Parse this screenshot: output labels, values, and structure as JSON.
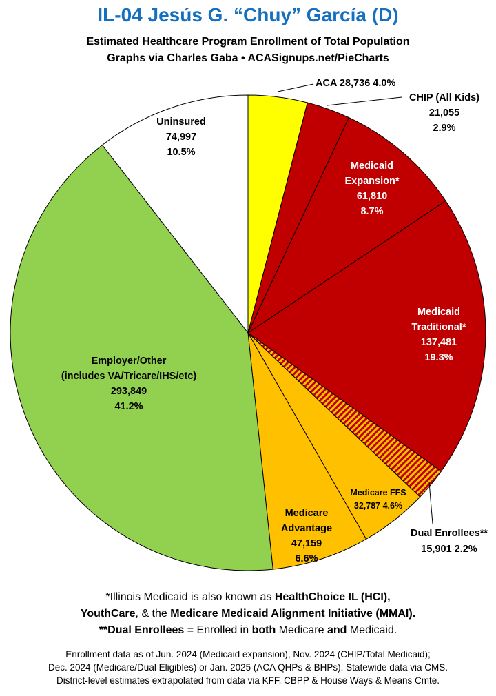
{
  "title": "IL-04 Jesús G. “Chuy” García (D)",
  "subtitle_line1": "Estimated Healthcare Program Enrollment of Total Population",
  "subtitle_line2": "Graphs via Charles Gaba   •   ACASignups.net/PieCharts",
  "colors": {
    "title": "#1670c0",
    "aca": "#ffff00",
    "medicaid": "#c00000",
    "medicare": "#ffc000",
    "employer": "#92d050",
    "uninsured": "#ffffff",
    "dual_stripe_a": "#c00000",
    "dual_stripe_b": "#ffc000"
  },
  "chart_data": {
    "type": "pie",
    "title": "IL-04 Jesús G. “Chuy” García (D)",
    "slices": [
      {
        "label": "ACA",
        "value": 28736,
        "value_text": "28,736",
        "pct": "4.0%",
        "color": "#ffff00"
      },
      {
        "label": "CHIP (All Kids)",
        "value": 21055,
        "value_text": "21,055",
        "pct": "2.9%",
        "color": "#c00000"
      },
      {
        "label": "Medicaid Expansion*",
        "value": 61810,
        "value_text": "61,810",
        "pct": "8.7%",
        "color": "#c00000"
      },
      {
        "label": "Medicaid Traditional*",
        "value": 137481,
        "value_text": "137,481",
        "pct": "19.3%",
        "color": "#c00000"
      },
      {
        "label": "Dual Enrollees**",
        "value": 15901,
        "value_text": "15,901",
        "pct": "2.2%",
        "color": "striped"
      },
      {
        "label": "Medicare FFS",
        "value": 32787,
        "value_text": "32,787",
        "pct": "4.6%",
        "color": "#ffc000"
      },
      {
        "label": "Medicare Advantage",
        "value": 47159,
        "value_text": "47,159",
        "pct": "6.6%",
        "color": "#ffc000"
      },
      {
        "label": "Employer/Other (includes VA/Tricare/IHS/etc)",
        "value": 293849,
        "value_text": "293,849",
        "pct": "41.2%",
        "color": "#92d050"
      },
      {
        "label": "Uninsured",
        "value": 74997,
        "value_text": "74,997",
        "pct": "10.5%",
        "color": "#ffffff"
      }
    ]
  },
  "labels": {
    "aca": "ACA 28,736 4.0%",
    "chip": [
      "CHIP (All Kids)",
      "21,055",
      "2.9%"
    ],
    "expansion": [
      "Medicaid",
      "Expansion*",
      "61,810",
      "8.7%"
    ],
    "traditional": [
      "Medicaid",
      "Traditional*",
      "137,481",
      "19.3%"
    ],
    "dual": [
      "Dual Enrollees**",
      "15,901 2.2%"
    ],
    "ffs": [
      "Medicare FFS",
      "32,787 4.6%"
    ],
    "advantage": [
      "Medicare",
      "Advantage",
      "47,159",
      "6.6%"
    ],
    "employer": [
      "Employer/Other",
      "(includes VA/Tricare/IHS/etc)",
      "293,849",
      "41.2%"
    ],
    "uninsured": [
      "Uninsured",
      "74,997",
      "10.5%"
    ]
  },
  "note": {
    "l1_a": "*Illinois Medicaid is also known as ",
    "l1_b": "HealthChoice IL (HCI),",
    "l2_a": "YouthCare",
    "l2_b": ", & the ",
    "l2_c": "Medicare Medicaid Alignment Initiative (MMAI).",
    "l3_a": "**Dual Enrollees",
    "l3_b": " = Enrolled in ",
    "l3_c": "both",
    "l3_d": " Medicare ",
    "l3_e": "and",
    "l3_f": " Medicaid."
  },
  "source": [
    "Enrollment data as of Jun. 2024 (Medicaid expansion), Nov. 2024 (CHIP/Total Medicaid);",
    "Dec. 2024 (Medicare/Dual Eligibles) or Jan. 2025 (ACA QHPs & BHPs). Statewide data via CMS.",
    "District-level estimates extrapolated from data via KFF, CBPP & House Ways & Means Cmte."
  ]
}
